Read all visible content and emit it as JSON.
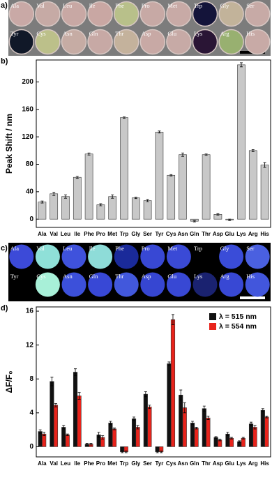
{
  "photo_a": {
    "panel_label": "a)",
    "wells": [
      {
        "label": "Ala",
        "color": "#c9a9a6"
      },
      {
        "label": "Val",
        "color": "#c6aaa5"
      },
      {
        "label": "Leu",
        "color": "#c8a8a4"
      },
      {
        "label": "Ile",
        "color": "#c9a7a3"
      },
      {
        "label": "Phe",
        "color": "#b8c08a"
      },
      {
        "label": "Pro",
        "color": "#c7a9a5"
      },
      {
        "label": "Met",
        "color": "#c8aaa6"
      },
      {
        "label": "Trp",
        "color": "#14143a"
      },
      {
        "label": "Gly",
        "color": "#c2b39a"
      },
      {
        "label": "Ser",
        "color": "#c7aaa6"
      },
      {
        "label": "Tyr",
        "color": "#101828"
      },
      {
        "label": "Cys",
        "color": "#bcc08a"
      },
      {
        "label": "Asn",
        "color": "#c6aca4"
      },
      {
        "label": "Gln",
        "color": "#c7a9a5"
      },
      {
        "label": "Thr",
        "color": "#c4b29c"
      },
      {
        "label": "Asp",
        "color": "#c8a9a5"
      },
      {
        "label": "Glu",
        "color": "#c7aaa6"
      },
      {
        "label": "Lys",
        "color": "#2a1535"
      },
      {
        "label": "Arg",
        "color": "#98b070"
      },
      {
        "label": "His",
        "color": "#c8aaa6"
      }
    ]
  },
  "photo_c": {
    "panel_label": "c)",
    "wells": [
      {
        "label": "Ala",
        "color": "#3c4ad8"
      },
      {
        "label": "Val",
        "color": "#8fe0d8"
      },
      {
        "label": "Leu",
        "color": "#3f52dc"
      },
      {
        "label": "Ile",
        "color": "#8edcd8"
      },
      {
        "label": "Phe",
        "color": "#1a2a9a"
      },
      {
        "label": "Pro",
        "color": "#3848d4"
      },
      {
        "label": "Met",
        "color": "#3a4ad6"
      },
      {
        "label": "Trp",
        "color": "#000000"
      },
      {
        "label": "Gly",
        "color": "#3a4cd8"
      },
      {
        "label": "Ser",
        "color": "#4a60e0"
      },
      {
        "label": "Tyr",
        "color": "#000000"
      },
      {
        "label": "Cys",
        "color": "#a8f0d8"
      },
      {
        "label": "Asn",
        "color": "#3c50da"
      },
      {
        "label": "Gln",
        "color": "#3848d6"
      },
      {
        "label": "Thr",
        "color": "#4258dc"
      },
      {
        "label": "Asp",
        "color": "#3646d2"
      },
      {
        "label": "Glu",
        "color": "#3848d4"
      },
      {
        "label": "Lys",
        "color": "#1a2270"
      },
      {
        "label": "Arg",
        "color": "#3848d4"
      },
      {
        "label": "His",
        "color": "#4256dc"
      }
    ]
  },
  "chart_data": [
    {
      "type": "bar",
      "panel_label": "b)",
      "y_label": "Peak Shift / nm",
      "categories": [
        "Ala",
        "Val",
        "Leu",
        "Ile",
        "Phe",
        "Pro",
        "Met",
        "Trp",
        "Gly",
        "Ser",
        "Tyr",
        "Cys",
        "Asn",
        "Gln",
        "Thr",
        "Asp",
        "Glu",
        "Lys",
        "Arg",
        "His"
      ],
      "values": [
        25,
        37,
        33,
        61,
        95,
        21,
        33,
        148,
        31,
        27,
        127,
        64,
        94,
        -3,
        94,
        7,
        -1,
        225,
        100,
        79
      ],
      "errors": [
        1.5,
        2.5,
        2.5,
        1.5,
        1.5,
        1.5,
        2.5,
        1,
        1,
        1.5,
        1.5,
        1,
        2.5,
        1,
        1,
        1,
        1,
        3,
        1.5,
        3.5
      ],
      "color": "#c8c8c8",
      "ylim": [
        -12,
        232
      ],
      "yticks": [
        0,
        40,
        80,
        120,
        160,
        200
      ]
    },
    {
      "type": "grouped-bar",
      "panel_label": "d)",
      "y_label": "ΔF/F₀",
      "categories": [
        "Ala",
        "Val",
        "Leu",
        "Ile",
        "Phe",
        "Pro",
        "Met",
        "Trp",
        "Gly",
        "Ser",
        "Tyr",
        "Cys",
        "Asn",
        "Gln",
        "Thr",
        "Asp",
        "Glu",
        "Lys",
        "Arg",
        "His"
      ],
      "series": [
        {
          "name": "λ = 515 nm",
          "color": "#111111",
          "values": [
            1.8,
            7.7,
            2.3,
            8.8,
            0.3,
            1.4,
            2.8,
            -0.6,
            3.3,
            6.2,
            -0.6,
            9.8,
            6.1,
            2.8,
            4.5,
            1.1,
            1.5,
            0.6,
            2.7,
            4.3
          ],
          "errors": [
            0.2,
            0.5,
            0.2,
            0.4,
            0.1,
            0.3,
            0.2,
            0.1,
            0.2,
            0.3,
            0.1,
            0.2,
            0.6,
            0.2,
            0.3,
            0.1,
            0.2,
            0.1,
            0.2,
            0.2
          ]
        },
        {
          "name": "λ = 554 nm",
          "color": "#e8231b",
          "values": [
            1.5,
            4.9,
            1.4,
            6.0,
            0.3,
            1.1,
            2.1,
            -0.6,
            2.3,
            4.7,
            -0.6,
            15.0,
            4.6,
            2.2,
            3.4,
            0.8,
            1.0,
            1.0,
            2.3,
            3.5
          ],
          "errors": [
            0.2,
            0.2,
            0.1,
            0.4,
            0.1,
            0.2,
            0.1,
            0.1,
            0.2,
            0.2,
            0.1,
            0.6,
            0.6,
            0.1,
            0.2,
            0.1,
            0.1,
            0.1,
            0.2,
            0.1
          ]
        }
      ],
      "legend": "top-right",
      "ylim": [
        -1.2,
        16.5
      ],
      "yticks": [
        0,
        4,
        8,
        12,
        16
      ]
    }
  ]
}
